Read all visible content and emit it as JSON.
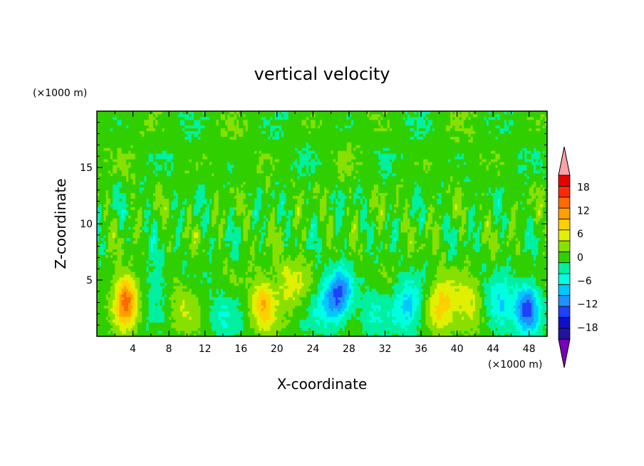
{
  "chart_data": {
    "type": "heatmap",
    "title": "vertical velocity",
    "xlabel": "X-coordinate",
    "ylabel": "Z-coordinate",
    "x_unit": "(×1000 m)",
    "y_unit": "(×1000 m)",
    "xlim": [
      0,
      50
    ],
    "ylim": [
      0,
      20
    ],
    "x_ticks": [
      "4",
      "8",
      "12",
      "16",
      "20",
      "24",
      "28",
      "32",
      "36",
      "40",
      "44",
      "48"
    ],
    "y_ticks": [
      "5",
      "10",
      "15"
    ],
    "colorbar": {
      "labels": [
        "18",
        "12",
        "6",
        "0",
        "−6",
        "−12",
        "−18"
      ],
      "label_values": [
        18,
        12,
        6,
        0,
        -6,
        -12,
        -18
      ],
      "levels": [
        -21,
        -18,
        -15,
        -12,
        -9,
        -6,
        -3,
        0,
        3,
        6,
        9,
        12,
        15,
        18,
        21
      ],
      "colors": [
        "#7a00b8",
        "#23129e",
        "#1010c8",
        "#1e40ff",
        "#1e90ff",
        "#00c8ff",
        "#00ffe0",
        "#00f0a0",
        "#30d000",
        "#88e000",
        "#e0f000",
        "#ffd000",
        "#ffa000",
        "#ff6a00",
        "#ff2a00",
        "#e80000",
        "#ffa0a8"
      ],
      "extend": "both"
    },
    "features": [
      {
        "x": 3.2,
        "z": 3.3,
        "peak": 15
      },
      {
        "x": 18.5,
        "z": 3.0,
        "peak": 10
      },
      {
        "x": 21.5,
        "z": 4.8,
        "peak": 6
      },
      {
        "x": 38.3,
        "z": 2.8,
        "peak": 9
      },
      {
        "x": 41.2,
        "z": 2.5,
        "peak": 6
      },
      {
        "x": 9.5,
        "z": 2.6,
        "peak": 4
      },
      {
        "x": 27.0,
        "z": 3.8,
        "peak": -11
      },
      {
        "x": 25.6,
        "z": 2.8,
        "peak": -7
      },
      {
        "x": 34.5,
        "z": 2.6,
        "peak": -9
      },
      {
        "x": 47.8,
        "z": 2.5,
        "peak": -14
      },
      {
        "x": 44.8,
        "z": 2.6,
        "peak": -8
      },
      {
        "x": 6.5,
        "z": 4.8,
        "peak": -4
      },
      {
        "x": 14.0,
        "z": 2.0,
        "peak": -4
      },
      {
        "x": 30.5,
        "z": 2.2,
        "peak": -4
      }
    ]
  }
}
